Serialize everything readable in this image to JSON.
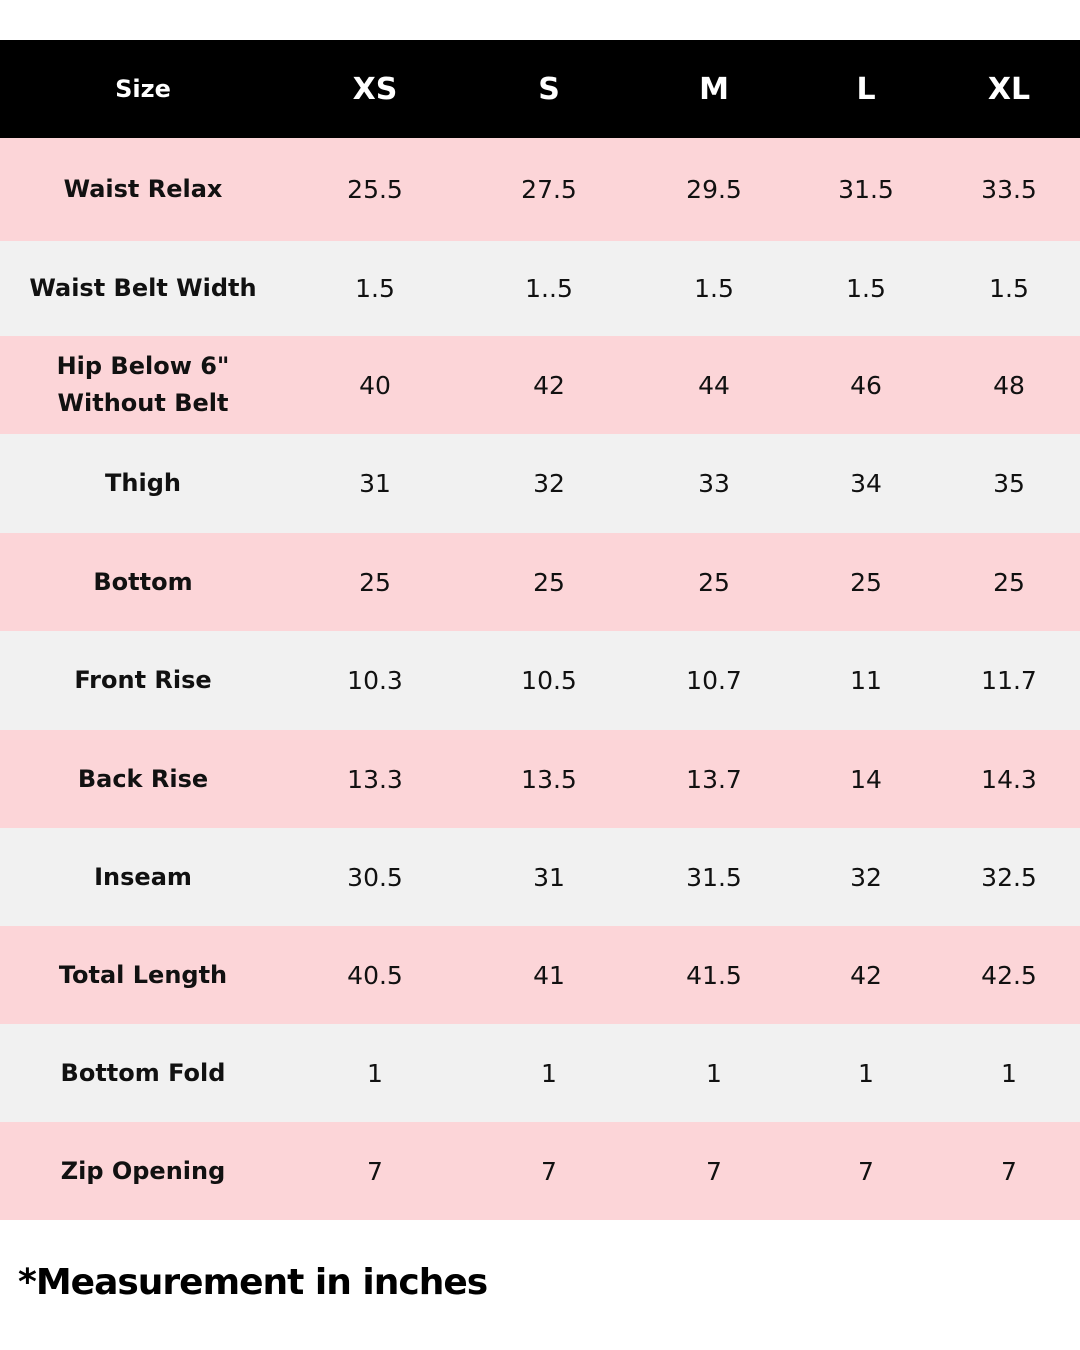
{
  "table": {
    "header": [
      "Size",
      "XS",
      "S",
      "M",
      "L",
      "XL"
    ],
    "rows": [
      [
        "Waist Relax",
        "25.5",
        "27.5",
        "29.5",
        "31.5",
        "33.5"
      ],
      [
        "Waist Belt Width",
        "1.5",
        "1..5",
        "1.5",
        "1.5",
        "1.5"
      ],
      [
        "Hip Below 6\" Without Belt",
        "40",
        "42",
        "44",
        "46",
        "48"
      ],
      [
        "Thigh",
        "31",
        "32",
        "33",
        "34",
        "35"
      ],
      [
        "Bottom",
        "25",
        "25",
        "25",
        "25",
        "25"
      ],
      [
        "Front Rise",
        "10.3",
        "10.5",
        "10.7",
        "11",
        "11.7"
      ],
      [
        "Back Rise",
        "13.3",
        "13.5",
        "13.7",
        "14",
        "14.3"
      ],
      [
        "Inseam",
        "30.5",
        "31",
        "31.5",
        "32",
        "32.5"
      ],
      [
        "Total Length",
        "40.5",
        "41",
        "41.5",
        "42",
        "42.5"
      ],
      [
        "Bottom Fold",
        "1",
        "1",
        "1",
        "1",
        "1"
      ],
      [
        "Zip Opening",
        "7",
        "7",
        "7",
        "7",
        "7"
      ]
    ]
  },
  "footer": {
    "note": "*Measurement in inches"
  }
}
